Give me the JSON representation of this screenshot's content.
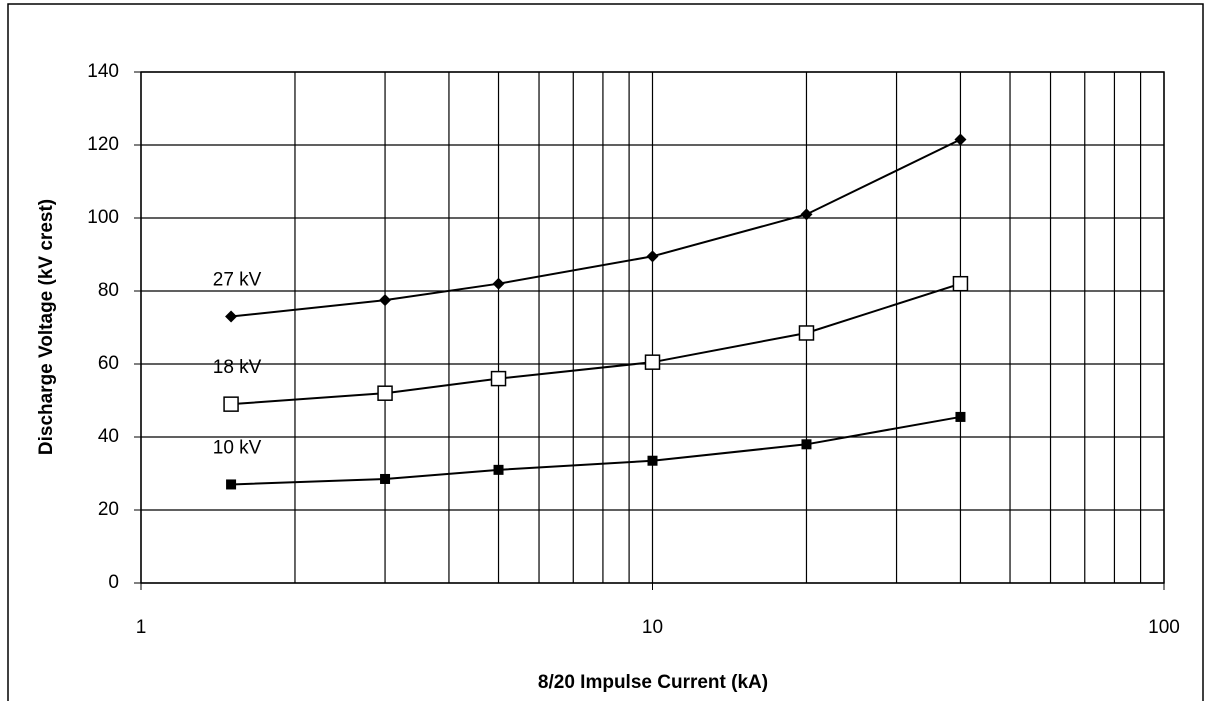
{
  "chart_data": {
    "type": "line",
    "xlabel": "8/20 Impulse Current (kA)",
    "ylabel": "Discharge Voltage (kV crest)",
    "x": [
      1.5,
      3,
      5,
      10,
      20,
      40
    ],
    "series": [
      {
        "name": "27 kV",
        "color": "#000000",
        "marker": "diamond",
        "values": [
          73,
          77.5,
          82,
          89.5,
          101,
          121.5
        ]
      },
      {
        "name": "18 kV",
        "color": "#000000",
        "marker": "square-open",
        "values": [
          49,
          52,
          56,
          60.5,
          68.5,
          82
        ]
      },
      {
        "name": "10 kV",
        "color": "#000000",
        "marker": "square",
        "values": [
          27,
          28.5,
          31,
          33.5,
          38,
          45.5
        ]
      }
    ],
    "xscale": "log",
    "xlim": [
      1,
      100
    ],
    "xticks": [
      1,
      10,
      100
    ],
    "xminorticks": [
      2,
      3,
      4,
      5,
      6,
      7,
      8,
      9,
      20,
      30,
      40,
      50,
      60,
      70,
      80,
      90
    ],
    "ylim": [
      0,
      140
    ],
    "yticks": [
      0,
      20,
      40,
      60,
      80,
      100,
      120,
      140
    ],
    "grid": true
  }
}
